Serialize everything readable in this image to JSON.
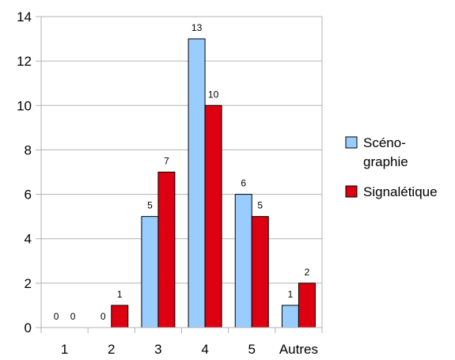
{
  "chart_data": {
    "type": "bar",
    "title": "",
    "xlabel": "",
    "ylabel": "",
    "categories": [
      "1",
      "2",
      "3",
      "4",
      "5",
      "Autres"
    ],
    "series": [
      {
        "name": "Scéno-graphie",
        "legend_lines": [
          "Scéno-",
          "graphie"
        ],
        "color": "#99CCFF",
        "values": [
          0,
          0,
          5,
          13,
          6,
          1
        ]
      },
      {
        "name": "Signalétique",
        "legend_lines": [
          "Signalétique"
        ],
        "color": "#DD0011",
        "values": [
          0,
          1,
          7,
          10,
          5,
          2
        ]
      }
    ],
    "ylim": [
      0,
      14
    ],
    "yticks": [
      "0",
      "2",
      "4",
      "6",
      "8",
      "10",
      "12",
      "14"
    ],
    "grid": true,
    "legend_position": "right",
    "data_labels": true
  }
}
